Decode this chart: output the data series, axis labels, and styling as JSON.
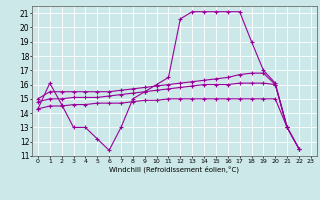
{
  "xlabel": "Windchill (Refroidissement éolien,°C)",
  "background_color": "#cce8e8",
  "grid_color": "#ffffff",
  "line_color": "#990099",
  "xlim": [
    -0.5,
    23.5
  ],
  "ylim": [
    11,
    21.5
  ],
  "yticks": [
    11,
    12,
    13,
    14,
    15,
    16,
    17,
    18,
    19,
    20,
    21
  ],
  "xticks": [
    0,
    1,
    2,
    3,
    4,
    5,
    6,
    7,
    8,
    9,
    10,
    11,
    12,
    13,
    14,
    15,
    16,
    17,
    18,
    19,
    20,
    21,
    22,
    23
  ],
  "series": [
    {
      "x": [
        0,
        1,
        2,
        3,
        4,
        5,
        6,
        7,
        8,
        9,
        10,
        11,
        12,
        13,
        14,
        15,
        16,
        17,
        18,
        19,
        20,
        21
      ],
      "y": [
        14.3,
        16.1,
        14.6,
        13.0,
        13.0,
        12.2,
        11.4,
        13.0,
        15.0,
        15.5,
        16.0,
        16.5,
        20.6,
        21.1,
        21.1,
        21.1,
        21.1,
        21.1,
        19.0,
        17.0,
        16.1,
        13.0
      ]
    },
    {
      "x": [
        0,
        1,
        2,
        3,
        4,
        5,
        6,
        7,
        8,
        9,
        10,
        11,
        12,
        13,
        14,
        15,
        16,
        17,
        18,
        19,
        20,
        21,
        22
      ],
      "y": [
        15.0,
        15.5,
        15.5,
        15.5,
        15.5,
        15.5,
        15.5,
        15.6,
        15.7,
        15.8,
        15.9,
        16.0,
        16.1,
        16.2,
        16.3,
        16.4,
        16.5,
        16.7,
        16.8,
        16.8,
        16.0,
        13.0,
        11.5
      ]
    },
    {
      "x": [
        0,
        1,
        2,
        3,
        4,
        5,
        6,
        7,
        8,
        9,
        10,
        11,
        12,
        13,
        14,
        15,
        16,
        17,
        18,
        19,
        20,
        21,
        22
      ],
      "y": [
        14.8,
        15.0,
        15.0,
        15.1,
        15.1,
        15.1,
        15.2,
        15.3,
        15.4,
        15.5,
        15.6,
        15.7,
        15.8,
        15.9,
        16.0,
        16.0,
        16.0,
        16.1,
        16.1,
        16.1,
        16.0,
        13.0,
        11.5
      ]
    },
    {
      "x": [
        0,
        1,
        2,
        3,
        4,
        5,
        6,
        7,
        8,
        9,
        10,
        11,
        12,
        13,
        14,
        15,
        16,
        17,
        18,
        19,
        20,
        21,
        22
      ],
      "y": [
        14.3,
        14.5,
        14.5,
        14.6,
        14.6,
        14.7,
        14.7,
        14.7,
        14.8,
        14.9,
        14.9,
        15.0,
        15.0,
        15.0,
        15.0,
        15.0,
        15.0,
        15.0,
        15.0,
        15.0,
        15.0,
        13.0,
        11.5
      ]
    }
  ]
}
